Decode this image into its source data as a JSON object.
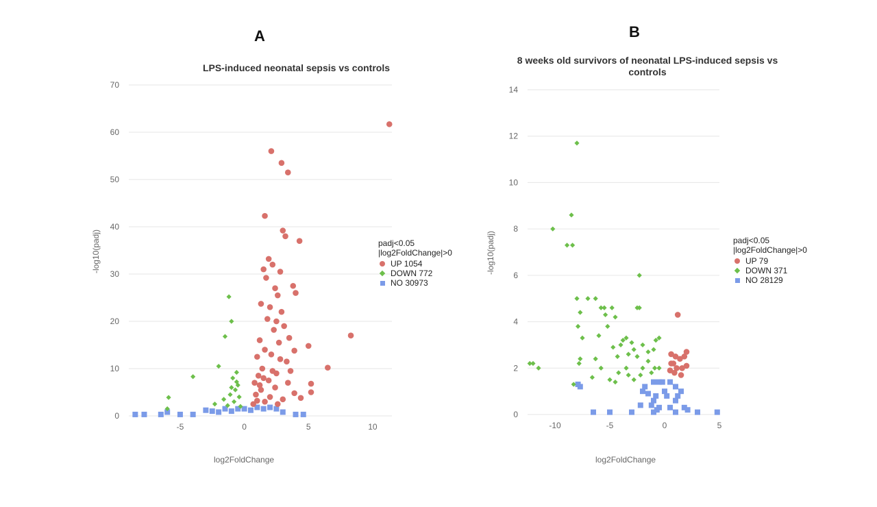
{
  "colors": {
    "up": "#d8716b",
    "down": "#6dbf4b",
    "no": "#7b9be8",
    "grid": "#e6e6e6"
  },
  "panels": [
    {
      "letter": "A",
      "title": "LPS-induced neonatal sepsis vs controls",
      "legend_title_1": "padj<0.05",
      "legend_title_2": "|log2FoldChange|>0",
      "legend": [
        {
          "label": "UP 1054",
          "shape": "circle-icon",
          "class": "up"
        },
        {
          "label": "DOWN 772",
          "shape": "diamond-icon",
          "class": "down"
        },
        {
          "label": "NO 30973",
          "shape": "square-icon",
          "class": "no"
        }
      ],
      "xlabel": "log2FoldChange",
      "ylabel": "-log10(padj)"
    },
    {
      "letter": "B",
      "title_line1": "8 weeks old survivors of neonatal LPS-induced sepsis vs",
      "title_line2": "controls",
      "legend_title_1": "padj<0.05",
      "legend_title_2": "|log2FoldChange|>0",
      "legend": [
        {
          "label": "UP 79",
          "shape": "circle-icon",
          "class": "up"
        },
        {
          "label": "DOWN 371",
          "shape": "diamond-icon",
          "class": "down"
        },
        {
          "label": "NO 28129",
          "shape": "square-icon",
          "class": "no"
        }
      ],
      "xlabel": "log2FoldChange",
      "ylabel": "-log10(padj)"
    }
  ],
  "chart_data": [
    {
      "type": "scatter",
      "title": "LPS-induced neonatal sepsis vs controls",
      "xlabel": "log2FoldChange",
      "ylabel": "-log10(padj)",
      "xlim": [
        -9,
        11.5
      ],
      "ylim": [
        0,
        70
      ],
      "x_ticks": [
        -5,
        0,
        5,
        10
      ],
      "y_ticks": [
        0,
        10,
        20,
        30,
        40,
        50,
        60,
        70
      ],
      "grid": "horizontal",
      "legend_position": "right",
      "series": [
        {
          "name": "UP 1054",
          "marker": "circle",
          "points": [
            [
              11.3,
              61.7
            ],
            [
              2.1,
              56.0
            ],
            [
              2.9,
              53.5
            ],
            [
              3.4,
              51.5
            ],
            [
              1.6,
              42.3
            ],
            [
              3.0,
              39.2
            ],
            [
              3.2,
              38.0
            ],
            [
              4.3,
              37.0
            ],
            [
              1.9,
              33.2
            ],
            [
              2.2,
              32.0
            ],
            [
              1.5,
              31.0
            ],
            [
              2.8,
              30.5
            ],
            [
              1.7,
              29.2
            ],
            [
              3.8,
              27.5
            ],
            [
              2.4,
              27.0
            ],
            [
              4.0,
              26.0
            ],
            [
              2.6,
              25.5
            ],
            [
              1.3,
              23.7
            ],
            [
              2.0,
              23.0
            ],
            [
              2.9,
              22.0
            ],
            [
              1.8,
              20.5
            ],
            [
              2.5,
              20.0
            ],
            [
              3.1,
              19.0
            ],
            [
              2.3,
              18.2
            ],
            [
              8.3,
              17.0
            ],
            [
              3.5,
              16.5
            ],
            [
              1.2,
              16.0
            ],
            [
              2.7,
              15.5
            ],
            [
              5.0,
              14.8
            ],
            [
              1.6,
              14.0
            ],
            [
              3.9,
              13.8
            ],
            [
              2.1,
              13.0
            ],
            [
              1.0,
              12.5
            ],
            [
              2.8,
              12.0
            ],
            [
              3.3,
              11.5
            ],
            [
              6.5,
              10.2
            ],
            [
              1.4,
              10.0
            ],
            [
              3.6,
              9.5
            ],
            [
              2.5,
              9.0
            ],
            [
              5.2,
              6.8
            ],
            [
              3.9,
              4.8
            ],
            [
              4.4,
              3.8
            ],
            [
              5.2,
              5.0
            ],
            [
              1.1,
              8.5
            ],
            [
              1.9,
              7.5
            ],
            [
              2.4,
              6.0
            ],
            [
              1.3,
              5.5
            ],
            [
              0.9,
              4.5
            ],
            [
              2.0,
              4.0
            ],
            [
              3.0,
              3.5
            ],
            [
              1.6,
              3.0
            ],
            [
              0.7,
              2.5
            ],
            [
              2.6,
              2.5
            ],
            [
              1.2,
              6.5
            ],
            [
              0.8,
              7.0
            ],
            [
              1.5,
              8.0
            ],
            [
              2.2,
              9.5
            ],
            [
              1.0,
              3.2
            ],
            [
              3.4,
              7.0
            ]
          ]
        },
        {
          "name": "DOWN 772",
          "marker": "diamond",
          "points": [
            [
              -1.2,
              25.2
            ],
            [
              -1.0,
              20.0
            ],
            [
              -1.5,
              16.8
            ],
            [
              -0.6,
              9.2
            ],
            [
              -0.9,
              8.0
            ],
            [
              -2.0,
              10.5
            ],
            [
              -4.0,
              8.3
            ],
            [
              -5.9,
              3.9
            ],
            [
              -0.5,
              6.5
            ],
            [
              -0.7,
              5.5
            ],
            [
              -1.1,
              4.5
            ],
            [
              -0.4,
              4.0
            ],
            [
              -1.6,
              3.5
            ],
            [
              -0.8,
              3.0
            ],
            [
              -2.3,
              2.5
            ],
            [
              -1.3,
              2.2
            ],
            [
              -0.3,
              2.0
            ],
            [
              -6.0,
              1.5
            ],
            [
              -0.6,
              7.2
            ],
            [
              -1.0,
              6.0
            ]
          ]
        },
        {
          "name": "NO 30973",
          "marker": "square",
          "points": [
            [
              -8.5,
              0.3
            ],
            [
              -7.8,
              0.3
            ],
            [
              -6.5,
              0.3
            ],
            [
              -6.0,
              0.8
            ],
            [
              -5.0,
              0.3
            ],
            [
              -4.0,
              0.3
            ],
            [
              -3.0,
              1.2
            ],
            [
              -2.5,
              1.0
            ],
            [
              -2.0,
              0.8
            ],
            [
              -1.5,
              1.5
            ],
            [
              -1.0,
              1.0
            ],
            [
              -0.5,
              1.5
            ],
            [
              0.0,
              1.5
            ],
            [
              0.5,
              1.2
            ],
            [
              1.0,
              1.8
            ],
            [
              1.5,
              1.5
            ],
            [
              2.0,
              1.8
            ],
            [
              2.5,
              1.5
            ],
            [
              3.0,
              0.8
            ],
            [
              4.0,
              0.3
            ],
            [
              4.6,
              0.3
            ]
          ]
        }
      ]
    },
    {
      "type": "scatter",
      "title": "8 weeks old survivors of neonatal LPS-induced sepsis vs controls",
      "xlabel": "log2FoldChange",
      "ylabel": "-log10(padj)",
      "xlim": [
        -12.5,
        5
      ],
      "ylim": [
        0,
        14
      ],
      "x_ticks": [
        -10,
        -5,
        0,
        5
      ],
      "y_ticks": [
        0,
        2,
        4,
        6,
        8,
        10,
        12,
        14
      ],
      "grid": "horizontal",
      "legend_position": "right",
      "series": [
        {
          "name": "UP 79",
          "marker": "circle",
          "points": [
            [
              1.2,
              4.3
            ],
            [
              0.6,
              2.6
            ],
            [
              1.0,
              2.5
            ],
            [
              1.8,
              2.5
            ],
            [
              2.0,
              2.7
            ],
            [
              1.4,
              2.4
            ],
            [
              0.8,
              2.2
            ],
            [
              1.6,
              2.0
            ],
            [
              0.5,
              1.9
            ],
            [
              2.0,
              2.1
            ],
            [
              1.1,
              2.0
            ],
            [
              0.9,
              1.8
            ],
            [
              1.5,
              1.7
            ],
            [
              0.6,
              2.2
            ]
          ]
        },
        {
          "name": "DOWN 371",
          "marker": "diamond",
          "points": [
            [
              -8.0,
              11.7
            ],
            [
              -8.5,
              8.6
            ],
            [
              -10.2,
              8.0
            ],
            [
              -8.9,
              7.3
            ],
            [
              -8.4,
              7.3
            ],
            [
              -2.3,
              6.0
            ],
            [
              -8.0,
              5.0
            ],
            [
              -7.0,
              5.0
            ],
            [
              -6.3,
              5.0
            ],
            [
              -2.5,
              4.6
            ],
            [
              -2.3,
              4.6
            ],
            [
              -5.8,
              4.6
            ],
            [
              -5.5,
              4.6
            ],
            [
              -4.8,
              4.6
            ],
            [
              -5.4,
              4.3
            ],
            [
              -4.5,
              4.2
            ],
            [
              -7.7,
              4.4
            ],
            [
              -7.9,
              3.8
            ],
            [
              -5.2,
              3.8
            ],
            [
              -6.0,
              3.4
            ],
            [
              -7.5,
              3.3
            ],
            [
              -3.5,
              3.3
            ],
            [
              -3.8,
              3.2
            ],
            [
              -3.0,
              3.1
            ],
            [
              -4.0,
              3.0
            ],
            [
              -4.7,
              2.9
            ],
            [
              -2.0,
              3.0
            ],
            [
              -2.8,
              2.8
            ],
            [
              -3.3,
              2.6
            ],
            [
              -4.3,
              2.5
            ],
            [
              -2.5,
              2.5
            ],
            [
              -1.5,
              2.7
            ],
            [
              -1.0,
              2.8
            ],
            [
              -0.8,
              3.2
            ],
            [
              -0.5,
              3.3
            ],
            [
              -6.3,
              2.4
            ],
            [
              -7.7,
              2.4
            ],
            [
              -7.8,
              2.2
            ],
            [
              -12.0,
              2.2
            ],
            [
              -12.3,
              2.2
            ],
            [
              -11.5,
              2.0
            ],
            [
              -5.8,
              2.0
            ],
            [
              -3.5,
              2.0
            ],
            [
              -2.0,
              2.0
            ],
            [
              -1.5,
              2.3
            ],
            [
              -0.9,
              2.0
            ],
            [
              -0.5,
              2.0
            ],
            [
              -4.2,
              1.8
            ],
            [
              -3.3,
              1.7
            ],
            [
              -2.2,
              1.7
            ],
            [
              -1.2,
              1.8
            ],
            [
              -6.6,
              1.6
            ],
            [
              -5.0,
              1.5
            ],
            [
              -8.3,
              1.3
            ],
            [
              -4.5,
              1.4
            ],
            [
              -2.8,
              1.5
            ]
          ]
        },
        {
          "name": "NO 28129",
          "marker": "square",
          "points": [
            [
              -7.9,
              1.3
            ],
            [
              -7.7,
              1.2
            ],
            [
              -6.5,
              0.1
            ],
            [
              -5.0,
              0.1
            ],
            [
              -3.0,
              0.1
            ],
            [
              -1.0,
              0.1
            ],
            [
              1.0,
              0.1
            ],
            [
              3.0,
              0.1
            ],
            [
              4.8,
              0.1
            ],
            [
              -1.8,
              1.2
            ],
            [
              -1.5,
              0.9
            ],
            [
              -1.0,
              1.4
            ],
            [
              -0.5,
              1.4
            ],
            [
              0.0,
              1.0
            ],
            [
              0.5,
              1.4
            ],
            [
              1.0,
              1.2
            ],
            [
              1.5,
              1.0
            ],
            [
              1.0,
              0.6
            ],
            [
              -1.0,
              0.6
            ],
            [
              -0.5,
              0.3
            ],
            [
              0.5,
              0.3
            ],
            [
              -0.2,
              1.4
            ],
            [
              0.2,
              0.8
            ],
            [
              -0.8,
              0.8
            ],
            [
              1.2,
              0.8
            ],
            [
              -1.2,
              0.4
            ],
            [
              -2.0,
              1.0
            ],
            [
              -0.7,
              0.2
            ],
            [
              -2.2,
              0.4
            ],
            [
              1.8,
              0.3
            ],
            [
              2.1,
              0.2
            ]
          ]
        }
      ]
    }
  ]
}
